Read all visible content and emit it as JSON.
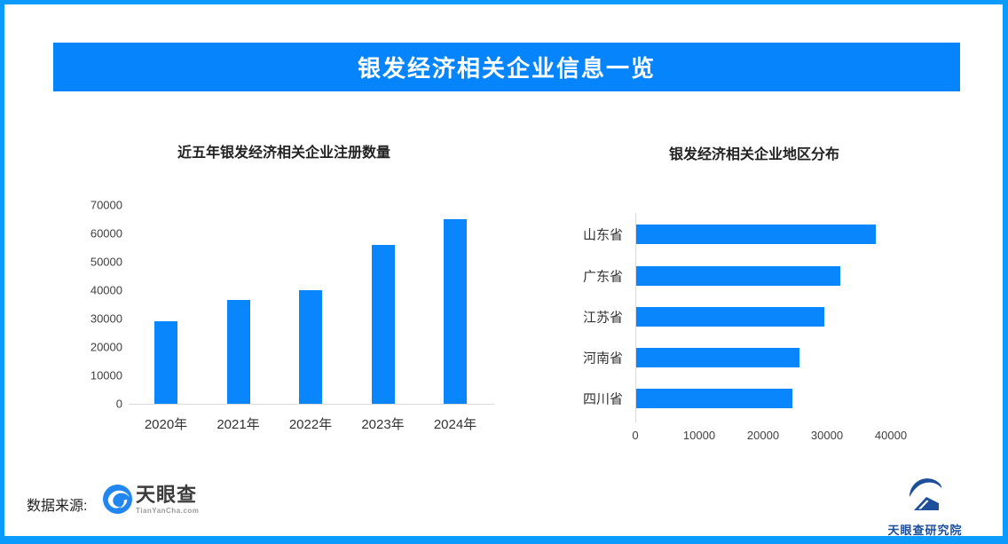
{
  "page": {
    "title": "银发经济相关企业信息一览"
  },
  "colors": {
    "border": "#0a9bfd",
    "banner": "#0584fb",
    "bar": "#0986fb",
    "axis_line": "#d9d9d9",
    "tyc_icon_blue": "#2186f0",
    "research_navy": "#1c4e9c"
  },
  "footer": {
    "source_label": "数据来源:",
    "tianyancha_logo_text": "天眼查",
    "tianyancha_logo_sub": "TianYanCha.com",
    "research_logo_text": "天眼查研究院"
  },
  "chart_data": [
    {
      "type": "bar",
      "orientation": "vertical",
      "title": "近五年银发经济相关企业注册数量",
      "categories": [
        "2020年",
        "2021年",
        "2022年",
        "2023年",
        "2024年"
      ],
      "values": [
        29000,
        36500,
        40000,
        56000,
        65000
      ],
      "xlabel": "",
      "ylabel": "",
      "ylim": [
        0,
        70000
      ],
      "yticks": [
        0,
        10000,
        20000,
        30000,
        40000,
        50000,
        60000,
        70000
      ],
      "grid": false,
      "legend": false
    },
    {
      "type": "bar",
      "orientation": "horizontal",
      "title": "银发经济相关企业地区分布",
      "categories": [
        "山东省",
        "广东省",
        "江苏省",
        "河南省",
        "四川省"
      ],
      "values": [
        37500,
        32000,
        29500,
        25500,
        24500
      ],
      "xlabel": "",
      "ylabel": "",
      "xlim": [
        0,
        40000
      ],
      "xticks": [
        0,
        10000,
        20000,
        30000,
        40000
      ],
      "grid": false,
      "legend": false
    }
  ]
}
